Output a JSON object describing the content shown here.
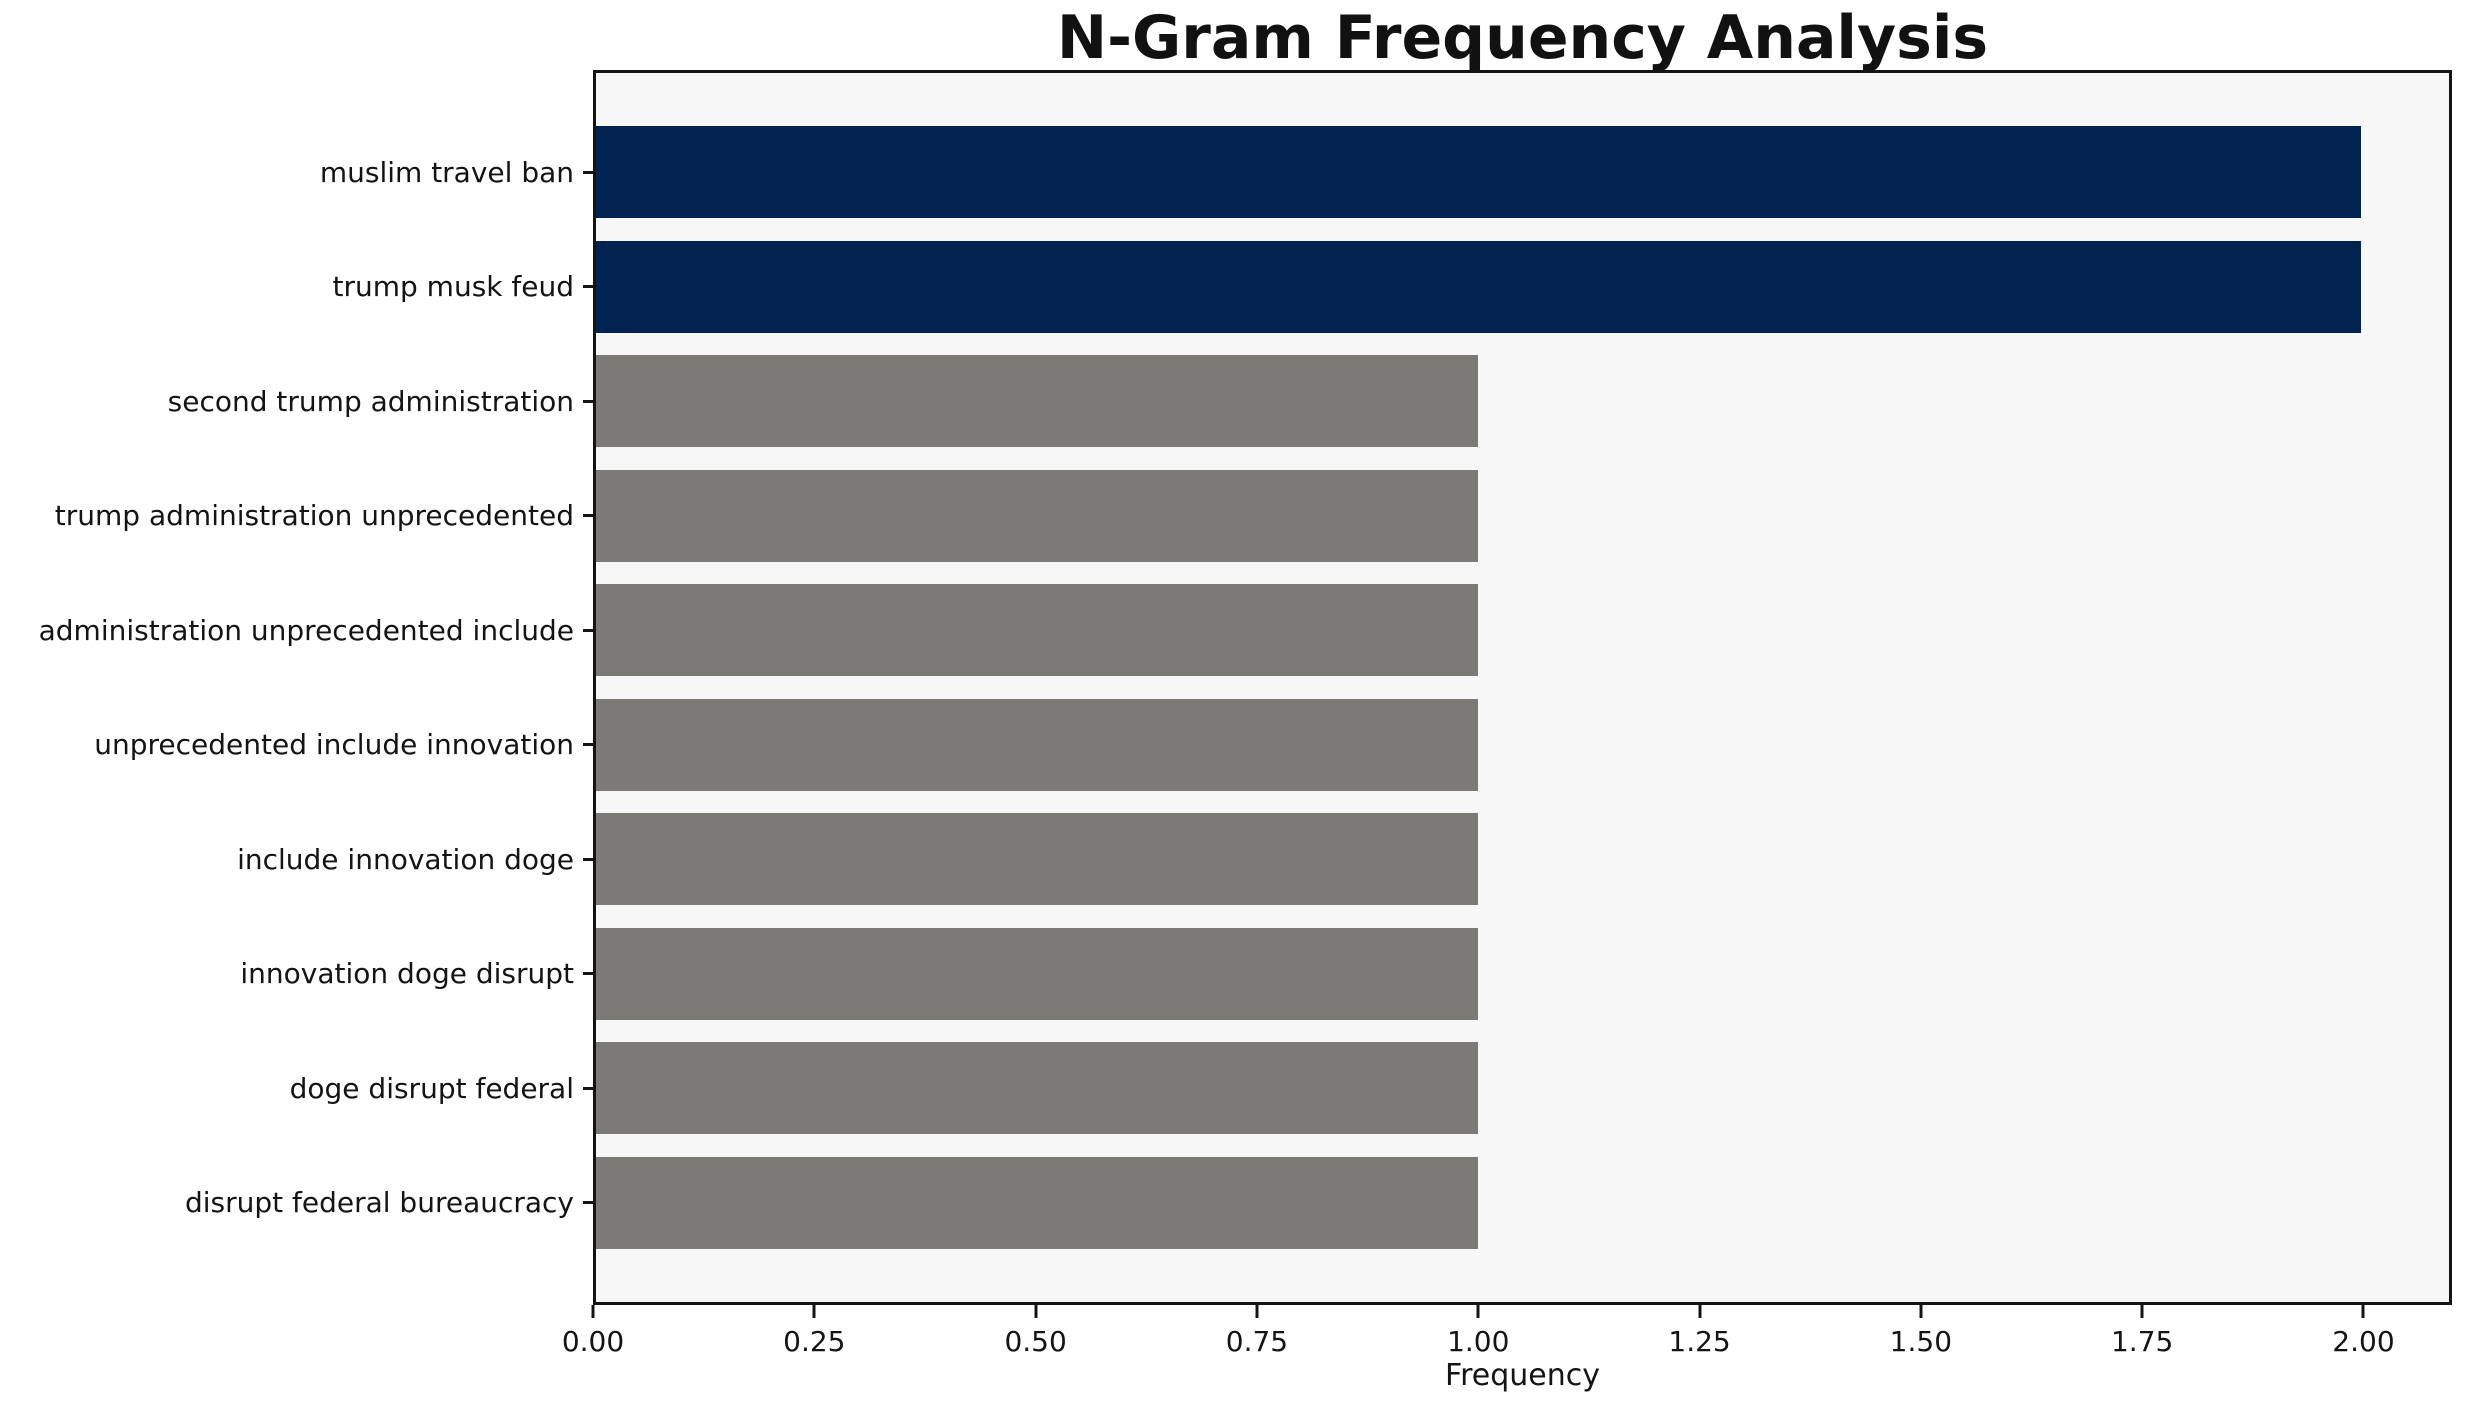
{
  "chart_data": {
    "type": "bar",
    "orientation": "horizontal",
    "title": "N-Gram Frequency Analysis",
    "xlabel": "Frequency",
    "ylabel": "",
    "categories": [
      "muslim travel ban",
      "trump musk feud",
      "second trump administration",
      "trump administration unprecedented",
      "administration unprecedented include",
      "unprecedented include innovation",
      "include innovation doge",
      "innovation doge disrupt",
      "doge disrupt federal",
      "disrupt federal bureaucracy"
    ],
    "values": [
      2,
      2,
      1,
      1,
      1,
      1,
      1,
      1,
      1,
      1
    ],
    "bar_colors": [
      "#02234f",
      "#02234f",
      "#7b7a76",
      "#7b7a76",
      "#7b7a76",
      "#7b7a76",
      "#7b7a76",
      "#7b7a76",
      "#7b7a76",
      "#7b7a76"
    ],
    "xlim": [
      0,
      2.1
    ],
    "xticks": [
      0.0,
      0.25,
      0.5,
      0.75,
      1.0,
      1.25,
      1.5,
      1.75,
      2.0
    ],
    "xtick_labels": [
      "0.00",
      "0.25",
      "0.50",
      "0.75",
      "1.00",
      "1.25",
      "1.50",
      "1.75",
      "2.00"
    ],
    "grid": false,
    "legend": null,
    "colors": {
      "highlight_bar": "#02234f",
      "default_bar": "#7b7a76",
      "plot_background": "#f7f7f7",
      "figure_background": "#ffffff",
      "spine": "#141414",
      "text": "#141414"
    }
  }
}
